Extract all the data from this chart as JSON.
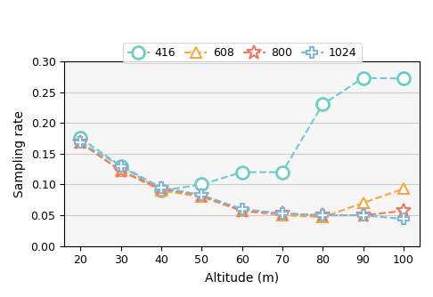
{
  "x": [
    20,
    30,
    40,
    50,
    60,
    70,
    80,
    90,
    100
  ],
  "series_order": [
    "416",
    "608",
    "800",
    "1024"
  ],
  "series": {
    "416": {
      "y": [
        0.175,
        0.13,
        0.09,
        0.1,
        0.12,
        0.12,
        0.23,
        0.273,
        0.272
      ],
      "color": "#6dcdc5",
      "marker": "o",
      "label": "416",
      "markersize": 10,
      "markerfacecolor": "white",
      "markeredgewidth": 2.0
    },
    "608": {
      "y": [
        0.168,
        0.122,
        0.09,
        0.08,
        0.057,
        0.05,
        0.047,
        0.07,
        0.093
      ],
      "color": "#f5a742",
      "marker": "^",
      "label": "608",
      "markersize": 9,
      "markerfacecolor": "white",
      "markeredgewidth": 1.5
    },
    "800": {
      "y": [
        0.168,
        0.122,
        0.093,
        0.082,
        0.057,
        0.053,
        0.05,
        0.05,
        0.057
      ],
      "color": "#f07860",
      "marker": "*",
      "label": "800",
      "markersize": 12,
      "markerfacecolor": "white",
      "markeredgewidth": 1.5
    },
    "1024": {
      "y": [
        0.168,
        0.13,
        0.095,
        0.083,
        0.06,
        0.053,
        0.05,
        0.05,
        0.044
      ],
      "color": "#7db8d8",
      "marker": "P",
      "label": "1024",
      "markersize": 8,
      "markerfacecolor": "white",
      "markeredgewidth": 1.5
    }
  },
  "xlabel": "Altitude (m)",
  "ylabel": "Sampling rate",
  "ylim": [
    0.0,
    0.3
  ],
  "yticks": [
    0.0,
    0.05,
    0.1,
    0.15,
    0.2,
    0.25,
    0.3
  ],
  "xticks": [
    20,
    30,
    40,
    50,
    60,
    70,
    80,
    90,
    100
  ],
  "legend_loc": "upper center",
  "legend_ncol": 4,
  "figsize": [
    4.86,
    3.34
  ],
  "dpi": 100,
  "linewidth": 1.5,
  "linestyle": "--",
  "grid_color": "#cccccc",
  "background_color": "#f5f5f5"
}
